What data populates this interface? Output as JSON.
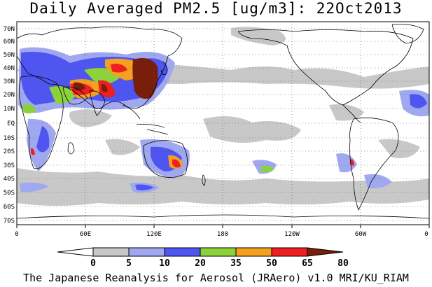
{
  "title": "Daily Averaged PM2.5 [ug/m3]: 22Oct2013",
  "footer": "The Japanese Reanalysis for Aerosol (JRAero) v1.0 MRI/KU_RIAM",
  "map": {
    "lat_labels": [
      "70N",
      "60N",
      "50N",
      "40N",
      "30N",
      "20N",
      "10N",
      "EQ",
      "10S",
      "20S",
      "30S",
      "40S",
      "50S",
      "60S",
      "70S"
    ],
    "lon_labels": [
      "0",
      "60E",
      "120E",
      "180",
      "120W",
      "60W",
      "0"
    ],
    "land_outline_color": "#000000",
    "grid_style": "dotted"
  },
  "legend": {
    "thresholds": [
      "0",
      "5",
      "10",
      "20",
      "35",
      "50",
      "65",
      "80"
    ],
    "colors": [
      "#ffffff",
      "#c8c8c8",
      "#a0a8f0",
      "#4f55f0",
      "#8cd23c",
      "#f5a01e",
      "#f01e1e",
      "#781e0a"
    ],
    "unit": "ug/m3"
  }
}
